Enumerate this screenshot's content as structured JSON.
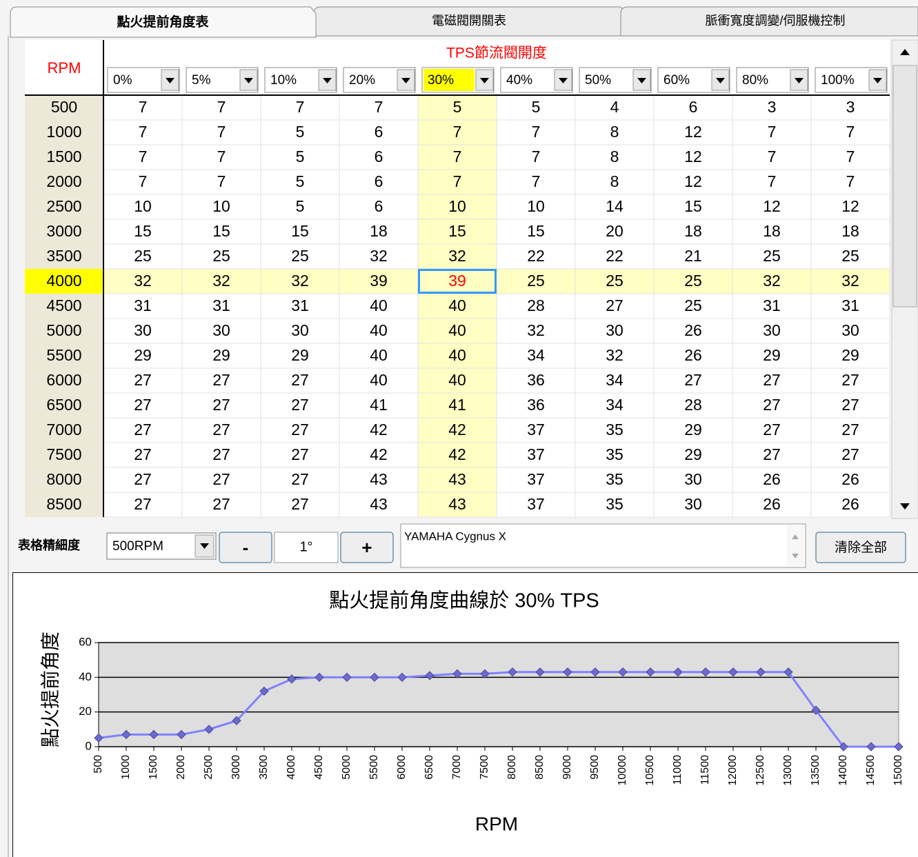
{
  "tabs": [
    "點火提前角度表",
    "電磁閥開關表",
    "脈衝寬度調變/伺服機控制"
  ],
  "table": {
    "corner_label": "RPM",
    "group_label": "TPS節流閥開度",
    "columns": [
      "0%",
      "5%",
      "10%",
      "20%",
      "30%",
      "40%",
      "50%",
      "60%",
      "80%",
      "100%"
    ],
    "selected_column": 4,
    "selected_row": 7,
    "row_labels": [
      "500",
      "1000",
      "1500",
      "2000",
      "2500",
      "3000",
      "3500",
      "4000",
      "4500",
      "5000",
      "5500",
      "6000",
      "6500",
      "7000",
      "7500",
      "8000",
      "8500"
    ],
    "rows": [
      [
        "7",
        "7",
        "7",
        "7",
        "5",
        "5",
        "4",
        "6",
        "3",
        "3"
      ],
      [
        "7",
        "7",
        "5",
        "6",
        "7",
        "7",
        "8",
        "12",
        "7",
        "7"
      ],
      [
        "7",
        "7",
        "5",
        "6",
        "7",
        "7",
        "8",
        "12",
        "7",
        "7"
      ],
      [
        "7",
        "7",
        "5",
        "6",
        "7",
        "7",
        "8",
        "12",
        "7",
        "7"
      ],
      [
        "10",
        "10",
        "5",
        "6",
        "10",
        "10",
        "14",
        "15",
        "12",
        "12"
      ],
      [
        "15",
        "15",
        "15",
        "18",
        "15",
        "15",
        "20",
        "18",
        "18",
        "18"
      ],
      [
        "25",
        "25",
        "25",
        "32",
        "32",
        "22",
        "22",
        "21",
        "25",
        "25"
      ],
      [
        "32",
        "32",
        "32",
        "39",
        "39",
        "25",
        "25",
        "25",
        "32",
        "32"
      ],
      [
        "31",
        "31",
        "31",
        "40",
        "40",
        "28",
        "27",
        "25",
        "31",
        "31"
      ],
      [
        "30",
        "30",
        "30",
        "40",
        "40",
        "32",
        "30",
        "26",
        "30",
        "30"
      ],
      [
        "29",
        "29",
        "29",
        "40",
        "40",
        "34",
        "32",
        "26",
        "29",
        "29"
      ],
      [
        "27",
        "27",
        "27",
        "40",
        "40",
        "36",
        "34",
        "27",
        "27",
        "27"
      ],
      [
        "27",
        "27",
        "27",
        "41",
        "41",
        "36",
        "34",
        "28",
        "27",
        "27"
      ],
      [
        "27",
        "27",
        "27",
        "42",
        "42",
        "37",
        "35",
        "29",
        "27",
        "27"
      ],
      [
        "27",
        "27",
        "27",
        "42",
        "42",
        "37",
        "35",
        "29",
        "27",
        "27"
      ],
      [
        "27",
        "27",
        "27",
        "43",
        "43",
        "37",
        "35",
        "30",
        "26",
        "26"
      ],
      [
        "27",
        "27",
        "27",
        "43",
        "43",
        "37",
        "35",
        "30",
        "26",
        "26"
      ]
    ]
  },
  "controls": {
    "resolution_label": "表格精細度",
    "resolution_value": "500RPM",
    "minus": "-",
    "step": "1°",
    "plus": "+",
    "notes": "YAMAHA Cygnus X",
    "clear_button": "清除全部"
  },
  "chart_data": {
    "type": "line",
    "title": "點火提前角度曲線於 30% TPS",
    "x_label": "RPM",
    "y_label": "點火提前角度",
    "categories": [
      "500",
      "1000",
      "1500",
      "2000",
      "2500",
      "3000",
      "3500",
      "4000",
      "4500",
      "5000",
      "5500",
      "6000",
      "6500",
      "7000",
      "7500",
      "8000",
      "8500",
      "9000",
      "9500",
      "10000",
      "10500",
      "11000",
      "11500",
      "12000",
      "12500",
      "13000",
      "13500",
      "14000",
      "14500",
      "15000"
    ],
    "values": [
      5,
      7,
      7,
      7,
      10,
      15,
      32,
      39,
      40,
      40,
      40,
      40,
      41,
      42,
      42,
      43,
      43,
      43,
      43,
      43,
      43,
      43,
      43,
      43,
      43,
      43,
      21,
      0,
      0,
      0
    ],
    "color": "#8080ff",
    "ylim": [
      0,
      60
    ],
    "yticks": [
      0,
      20,
      40,
      60
    ],
    "grid": true
  }
}
